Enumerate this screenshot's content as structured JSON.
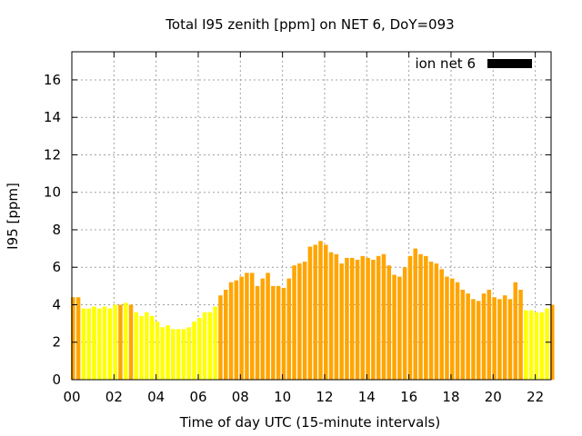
{
  "chart_data": {
    "type": "bar",
    "title": "Total I95 zenith [ppm] on NET 6, DoY=093",
    "xlabel": "Time of day UTC (15-minute intervals)",
    "ylabel": "I95 [ppm]",
    "xlim": [
      0,
      22.75
    ],
    "ylim": [
      0,
      17.5
    ],
    "x_ticks": [
      "00",
      "02",
      "04",
      "06",
      "08",
      "10",
      "12",
      "14",
      "16",
      "18",
      "20",
      "22"
    ],
    "y_ticks": [
      "0",
      "2",
      "4",
      "6",
      "8",
      "10",
      "12",
      "14",
      "16"
    ],
    "grid": true,
    "legend": {
      "label": "ion net 6",
      "position": "top-right"
    },
    "bar_interval_hours": 0.25,
    "values": [
      4.4,
      4.4,
      3.8,
      3.8,
      3.9,
      3.8,
      3.9,
      3.8,
      4.0,
      4.0,
      4.1,
      4.0,
      3.6,
      3.4,
      3.6,
      3.4,
      3.1,
      2.8,
      2.9,
      2.7,
      2.7,
      2.7,
      2.8,
      3.1,
      3.3,
      3.6,
      3.6,
      3.9,
      4.5,
      4.8,
      5.2,
      5.3,
      5.5,
      5.7,
      5.7,
      5.0,
      5.4,
      5.7,
      5.0,
      5.0,
      4.9,
      5.4,
      6.1,
      6.2,
      6.3,
      7.1,
      7.2,
      7.4,
      7.2,
      6.8,
      6.7,
      6.2,
      6.5,
      6.5,
      6.4,
      6.6,
      6.5,
      6.4,
      6.6,
      6.7,
      6.1,
      5.6,
      5.5,
      6.0,
      6.6,
      7.0,
      6.7,
      6.6,
      6.3,
      6.2,
      5.9,
      5.5,
      5.4,
      5.2,
      4.8,
      4.6,
      4.3,
      4.2,
      4.6,
      4.8,
      4.4,
      4.3,
      4.5,
      4.3,
      5.2,
      4.8,
      3.7,
      3.7,
      3.6,
      3.6,
      3.8,
      4.0
    ],
    "bar_colors": [
      "#ffa500",
      "#ffa500",
      "#ffff00",
      "#ffff00",
      "#ffff00",
      "#ffff00",
      "#ffff00",
      "#ffff00",
      "#ffff00",
      "#ffa500",
      "#ffff00",
      "#ffa500",
      "#ffff00",
      "#ffff00",
      "#ffff00",
      "#ffff00",
      "#ffff00",
      "#ffff00",
      "#ffff00",
      "#ffff00",
      "#ffff00",
      "#ffff00",
      "#ffff00",
      "#ffff00",
      "#ffff00",
      "#ffff00",
      "#ffff00",
      "#ffff00",
      "#ffa500",
      "#ffa500",
      "#ffa500",
      "#ffa500",
      "#ffa500",
      "#ffa500",
      "#ffa500",
      "#ffa500",
      "#ffa500",
      "#ffa500",
      "#ffa500",
      "#ffa500",
      "#ffa500",
      "#ffa500",
      "#ffa500",
      "#ffa500",
      "#ffa500",
      "#ffa500",
      "#ffa500",
      "#ffa500",
      "#ffa500",
      "#ffa500",
      "#ffa500",
      "#ffa500",
      "#ffa500",
      "#ffa500",
      "#ffa500",
      "#ffa500",
      "#ffa500",
      "#ffa500",
      "#ffa500",
      "#ffa500",
      "#ffa500",
      "#ffa500",
      "#ffa500",
      "#ffa500",
      "#ffa500",
      "#ffa500",
      "#ffa500",
      "#ffa500",
      "#ffa500",
      "#ffa500",
      "#ffa500",
      "#ffa500",
      "#ffa500",
      "#ffa500",
      "#ffa500",
      "#ffa500",
      "#ffa500",
      "#ffa500",
      "#ffa500",
      "#ffa500",
      "#ffa500",
      "#ffa500",
      "#ffa500",
      "#ffa500",
      "#ffa500",
      "#ffa500",
      "#ffff00",
      "#ffff00",
      "#ffff00",
      "#ffff00",
      "#ffff00",
      "#ffa500"
    ],
    "colors": {
      "orange": "#ffa500",
      "yellow": "#ffff00",
      "legend_swatch": "#000000",
      "grid": "#a0a0a0"
    }
  }
}
